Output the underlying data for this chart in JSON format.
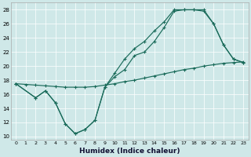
{
  "xlabel": "Humidex (Indice chaleur)",
  "bg_color": "#cfe8e8",
  "line_color": "#1a6b5a",
  "grid_color": "#ffffff",
  "xlim": [
    -0.5,
    23.5
  ],
  "ylim": [
    9.5,
    29.0
  ],
  "xticks": [
    0,
    1,
    2,
    3,
    4,
    5,
    6,
    7,
    8,
    9,
    10,
    11,
    12,
    13,
    14,
    15,
    16,
    17,
    18,
    19,
    20,
    21,
    22,
    23
  ],
  "yticks": [
    10,
    12,
    14,
    16,
    18,
    20,
    22,
    24,
    26,
    28
  ],
  "line1_x": [
    0,
    1,
    2,
    3,
    4,
    5,
    6,
    7,
    8,
    9,
    10,
    11,
    12,
    13,
    14,
    15,
    16,
    17,
    18,
    19,
    20,
    21,
    22,
    23
  ],
  "line1_y": [
    17.5,
    17.4,
    17.3,
    17.2,
    17.1,
    17.0,
    17.0,
    17.0,
    17.1,
    17.3,
    17.5,
    17.8,
    18.0,
    18.3,
    18.6,
    18.9,
    19.2,
    19.5,
    19.7,
    20.0,
    20.2,
    20.4,
    20.5,
    20.6
  ],
  "line2_x": [
    0,
    2,
    3,
    4,
    5,
    6,
    7,
    8,
    9,
    10,
    11,
    12,
    13,
    14,
    15,
    16,
    17,
    18,
    19,
    20,
    21,
    22,
    23
  ],
  "line2_y": [
    17.5,
    15.5,
    16.5,
    14.8,
    11.8,
    10.4,
    11.0,
    12.3,
    17.0,
    18.5,
    19.5,
    21.5,
    22.0,
    23.5,
    25.5,
    27.8,
    28.0,
    28.0,
    27.8,
    26.0,
    23.0,
    21.0,
    20.5
  ],
  "line3_x": [
    0,
    2,
    3,
    4,
    5,
    6,
    7,
    8,
    9,
    10,
    11,
    12,
    13,
    14,
    15,
    16,
    17,
    18,
    19,
    20,
    21,
    22,
    23
  ],
  "line3_y": [
    17.5,
    15.5,
    16.5,
    14.8,
    11.8,
    10.4,
    11.0,
    12.3,
    17.0,
    19.0,
    21.0,
    22.5,
    23.5,
    25.0,
    26.3,
    28.0,
    28.0,
    28.0,
    28.0,
    26.0,
    23.0,
    21.0,
    20.5
  ]
}
